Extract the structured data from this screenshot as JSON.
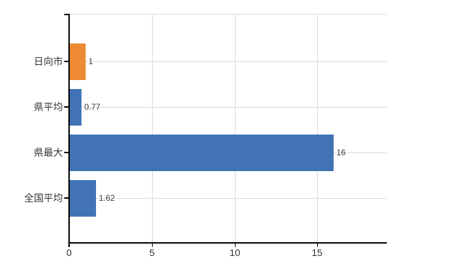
{
  "chart_data": {
    "type": "bar",
    "orientation": "horizontal",
    "title": "",
    "xlabel": "",
    "ylabel": "",
    "categories": [
      "日向市",
      "県平均",
      "県最大",
      "全国平均"
    ],
    "values": [
      1,
      0.77,
      16,
      1.62
    ],
    "value_labels": [
      "1",
      "0.77",
      "16",
      "1.62"
    ],
    "bar_colors": [
      "#ee8a33",
      "#4274b5",
      "#4274b5",
      "#4274b5"
    ],
    "x_ticks": [
      0,
      5,
      10,
      15
    ],
    "x_tick_labels": [
      "0",
      "5",
      "10",
      "15"
    ],
    "xlim": [
      0,
      19.2
    ],
    "grid": true,
    "legend_position": "none",
    "colors": {
      "background": "#ffffff",
      "axis": "#000000",
      "grid": "#d9d9d9",
      "category_label": "#333333",
      "value_label": "#3d3d3d",
      "tick_label": "#333333"
    }
  }
}
